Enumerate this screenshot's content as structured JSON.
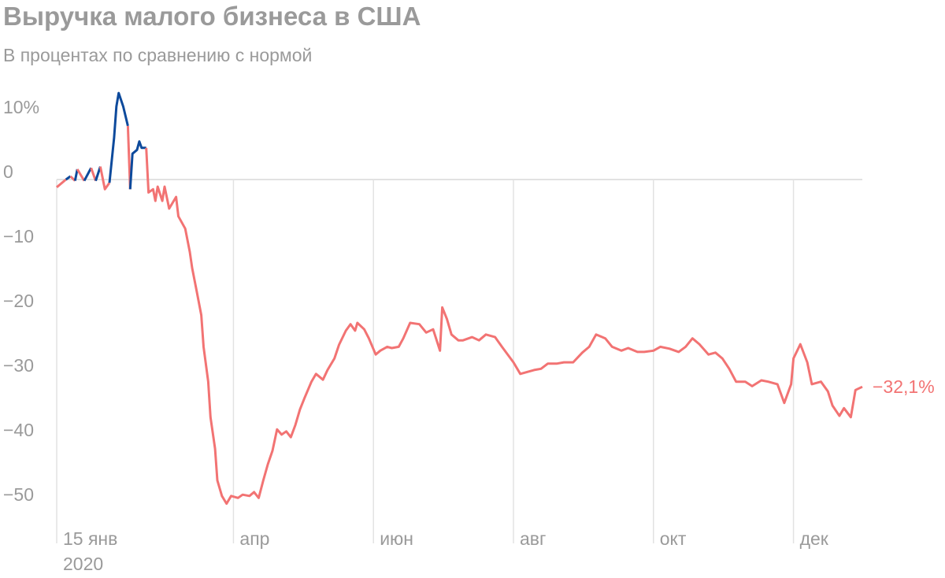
{
  "chart_data": {
    "type": "line",
    "title": "Выручка малого бизнеса в США",
    "subtitle": "В процентах по сравнению с нормой",
    "color_positive": "#0d4a9c",
    "color_negative": "#f27373",
    "xlim": [
      "2020-01-15",
      "2020-12-31"
    ],
    "xticks": [
      {
        "value": "2020-01-15",
        "label": "15 янв",
        "sublabel": "2020"
      },
      {
        "value": "2020-04-01",
        "label": "апр"
      },
      {
        "value": "2020-06-01",
        "label": "июн"
      },
      {
        "value": "2020-08-01",
        "label": "авг"
      },
      {
        "value": "2020-10-01",
        "label": "окт"
      },
      {
        "value": "2020-12-01",
        "label": "дек"
      }
    ],
    "ylim": [
      -55,
      14
    ],
    "yticks": [
      {
        "value": 10,
        "label": "10%"
      },
      0,
      {
        "value": -10,
        "label": "−10"
      },
      {
        "value": -20,
        "label": "−20"
      },
      {
        "value": -30,
        "label": "−30"
      },
      {
        "value": -40,
        "label": "−40"
      },
      {
        "value": -50,
        "label": "−50"
      }
    ],
    "grid": {
      "x": true,
      "zero_line": true
    },
    "x": [
      "2020-01-15",
      "2020-01-19",
      "2020-01-21",
      "2020-01-23",
      "2020-01-24",
      "2020-01-27",
      "2020-01-30",
      "2020-02-01",
      "2020-02-03",
      "2020-02-05",
      "2020-02-07",
      "2020-02-09",
      "2020-02-10",
      "2020-02-11",
      "2020-02-13",
      "2020-02-15",
      "2020-02-16",
      "2020-02-17",
      "2020-02-19",
      "2020-02-20",
      "2020-02-21",
      "2020-02-23",
      "2020-02-24",
      "2020-02-26",
      "2020-02-27",
      "2020-02-28",
      "2020-03-01",
      "2020-03-02",
      "2020-03-04",
      "2020-03-07",
      "2020-03-08",
      "2020-03-11",
      "2020-03-13",
      "2020-03-14",
      "2020-03-16",
      "2020-03-18",
      "2020-03-19",
      "2020-03-21",
      "2020-03-22",
      "2020-03-24",
      "2020-03-25",
      "2020-03-27",
      "2020-03-29",
      "2020-03-31",
      "2020-04-03",
      "2020-04-05",
      "2020-04-08",
      "2020-04-10",
      "2020-04-12",
      "2020-04-14",
      "2020-04-16",
      "2020-04-18",
      "2020-04-20",
      "2020-04-22",
      "2020-04-24",
      "2020-04-26",
      "2020-04-28",
      "2020-04-30",
      "2020-05-02",
      "2020-05-05",
      "2020-05-07",
      "2020-05-10",
      "2020-05-12",
      "2020-05-15",
      "2020-05-17",
      "2020-05-20",
      "2020-05-22",
      "2020-05-24",
      "2020-05-25",
      "2020-05-28",
      "2020-05-30",
      "2020-06-02",
      "2020-06-04",
      "2020-06-07",
      "2020-06-09",
      "2020-06-12",
      "2020-06-14",
      "2020-06-17",
      "2020-06-21",
      "2020-06-24",
      "2020-06-27",
      "2020-06-30",
      "2020-07-01",
      "2020-07-03",
      "2020-07-05",
      "2020-07-08",
      "2020-07-10",
      "2020-07-14",
      "2020-07-17",
      "2020-07-20",
      "2020-07-24",
      "2020-07-27",
      "2020-08-01",
      "2020-08-04",
      "2020-08-10",
      "2020-08-13",
      "2020-08-16",
      "2020-08-20",
      "2020-08-23",
      "2020-08-27",
      "2020-08-31",
      "2020-09-03",
      "2020-09-06",
      "2020-09-10",
      "2020-09-13",
      "2020-09-17",
      "2020-09-20",
      "2020-09-24",
      "2020-09-27",
      "2020-10-01",
      "2020-10-04",
      "2020-10-08",
      "2020-10-12",
      "2020-10-15",
      "2020-10-18",
      "2020-10-21",
      "2020-10-25",
      "2020-10-28",
      "2020-10-31",
      "2020-11-03",
      "2020-11-06",
      "2020-11-10",
      "2020-11-13",
      "2020-11-17",
      "2020-11-20",
      "2020-11-24",
      "2020-11-27",
      "2020-11-30",
      "2020-12-01",
      "2020-12-04",
      "2020-12-07",
      "2020-12-09",
      "2020-12-13",
      "2020-12-16",
      "2020-12-18",
      "2020-12-21",
      "2020-12-23",
      "2020-12-26",
      "2020-12-28",
      "2020-12-31"
    ],
    "values": [
      -1.2,
      0.0,
      0.5,
      -0.2,
      1.6,
      -0.2,
      1.8,
      -0.2,
      2.0,
      -1.5,
      -0.5,
      6.5,
      11.3,
      13.4,
      11.3,
      8.3,
      -1.5,
      4.0,
      4.6,
      5.9,
      4.9,
      4.9,
      -2.0,
      -1.5,
      -3.3,
      -1.1,
      -3.3,
      -1.1,
      -4.5,
      -2.7,
      -5.7,
      -7.6,
      -11.2,
      -13.7,
      -17.3,
      -21.0,
      -25.9,
      -31.3,
      -36.8,
      -41.7,
      -46.6,
      -49.0,
      -50.2,
      -49.0,
      -49.3,
      -48.8,
      -49.0,
      -48.4,
      -49.3,
      -46.6,
      -44.1,
      -42.0,
      -38.7,
      -39.5,
      -39.0,
      -39.9,
      -38.0,
      -35.6,
      -33.8,
      -31.3,
      -30.1,
      -31.0,
      -29.5,
      -27.7,
      -25.6,
      -23.4,
      -22.4,
      -23.4,
      -22.2,
      -23.2,
      -24.6,
      -27.1,
      -26.5,
      -25.9,
      -26.1,
      -25.9,
      -24.6,
      -22.2,
      -22.4,
      -23.7,
      -23.2,
      -26.5,
      -19.8,
      -21.6,
      -24.0,
      -24.9,
      -24.9,
      -24.4,
      -24.9,
      -24.0,
      -24.4,
      -25.9,
      -28.3,
      -30.1,
      -29.5,
      -29.3,
      -28.5,
      -28.5,
      -28.3,
      -28.3,
      -26.8,
      -25.9,
      -24.0,
      -24.6,
      -25.9,
      -26.5,
      -26.1,
      -26.7,
      -26.7,
      -26.5,
      -25.9,
      -26.2,
      -26.7,
      -25.9,
      -24.6,
      -25.5,
      -27.1,
      -26.8,
      -27.7,
      -29.3,
      -31.3,
      -31.3,
      -32.0,
      -31.1,
      -31.3,
      -31.7,
      -34.6,
      -31.7,
      -27.7,
      -25.5,
      -28.3,
      -31.7,
      -31.3,
      -32.8,
      -35.0,
      -36.6,
      -35.4,
      -36.8,
      -32.6,
      -32.1
    ],
    "end_label": {
      "value": -32.1,
      "label": "−32,1%"
    }
  }
}
